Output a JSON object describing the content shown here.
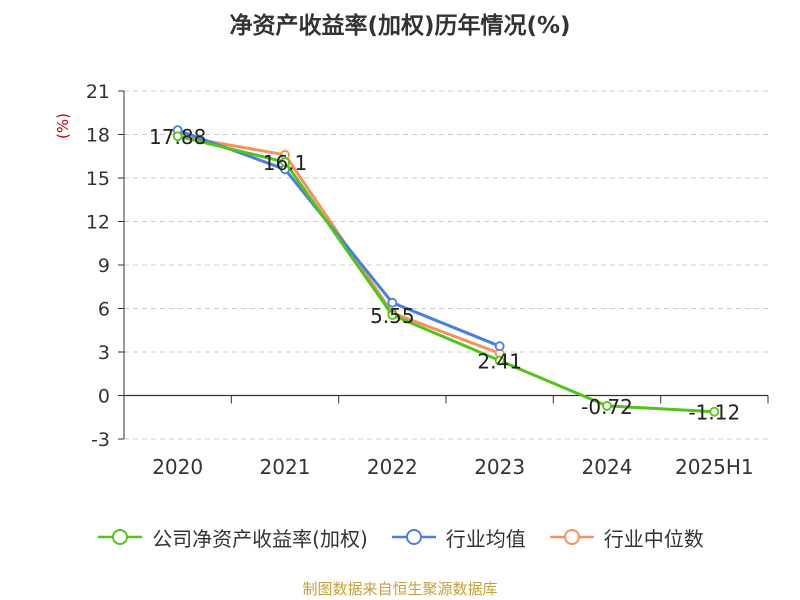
{
  "title": "净资产收益率(加权)历年情况(%)",
  "source": "制图数据来自恒生聚源数据库",
  "colors": {
    "company": "#52c41a",
    "industry_avg": "#4a7fe0",
    "industry_median": "#f5915a",
    "ylabel": "#cc0000",
    "source": "#c8a03c"
  },
  "chart_data": {
    "type": "line",
    "title": "净资产收益率(加权)历年情况(%)",
    "ylabel": "(%)",
    "xlabel": "",
    "categories": [
      "2020",
      "2021",
      "2022",
      "2023",
      "2024",
      "2025H1"
    ],
    "ylim": [
      -3,
      21
    ],
    "yticks": [
      -3,
      0,
      3,
      6,
      9,
      12,
      15,
      18,
      21
    ],
    "grid": true,
    "legend_position": "bottom",
    "series": [
      {
        "name": "公司净资产收益率(加权)",
        "color": "#52c41a",
        "values": [
          17.88,
          16.1,
          5.55,
          2.41,
          -0.72,
          -1.12
        ],
        "labels": [
          "17.88",
          "16.1",
          "5.55",
          "2.41",
          "-0.72",
          "-1.12"
        ]
      },
      {
        "name": "行业均值",
        "color": "#4a7fe0",
        "values": [
          18.3,
          15.6,
          6.4,
          3.4,
          null,
          null
        ]
      },
      {
        "name": "行业中位数",
        "color": "#f5915a",
        "values": [
          17.9,
          16.6,
          5.7,
          2.9,
          null,
          null
        ]
      }
    ]
  }
}
